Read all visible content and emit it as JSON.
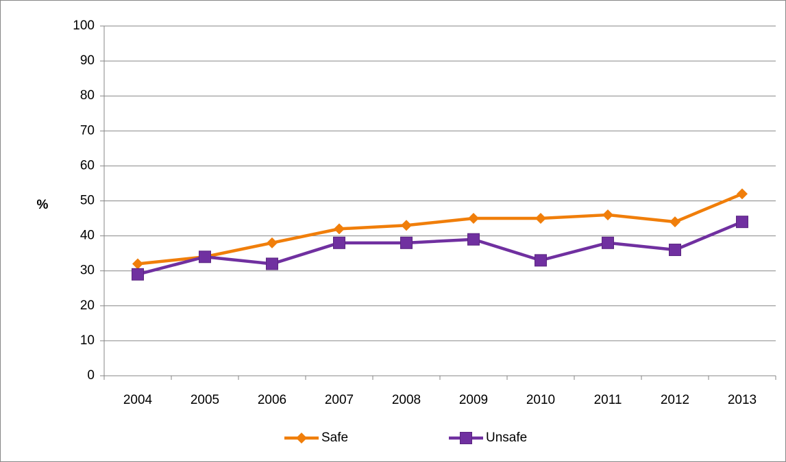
{
  "chart_data": {
    "type": "line",
    "y_label": "%",
    "categories": [
      "2004",
      "2005",
      "2006",
      "2007",
      "2008",
      "2009",
      "2010",
      "2011",
      "2012",
      "2013"
    ],
    "series": [
      {
        "name": "Safe",
        "color": "#f07e0a",
        "marker": "diamond",
        "values": [
          32,
          34,
          38,
          42,
          43,
          45,
          45,
          46,
          44,
          52
        ]
      },
      {
        "name": "Unsafe",
        "color": "#7030a0",
        "marker": "square",
        "values": [
          29,
          34,
          32,
          38,
          38,
          39,
          33,
          38,
          36,
          44
        ]
      }
    ],
    "ylim": [
      0,
      100
    ],
    "yticks": [
      0,
      10,
      20,
      30,
      40,
      50,
      60,
      70,
      80,
      90,
      100
    ],
    "grid": true,
    "legend": "bottom"
  }
}
